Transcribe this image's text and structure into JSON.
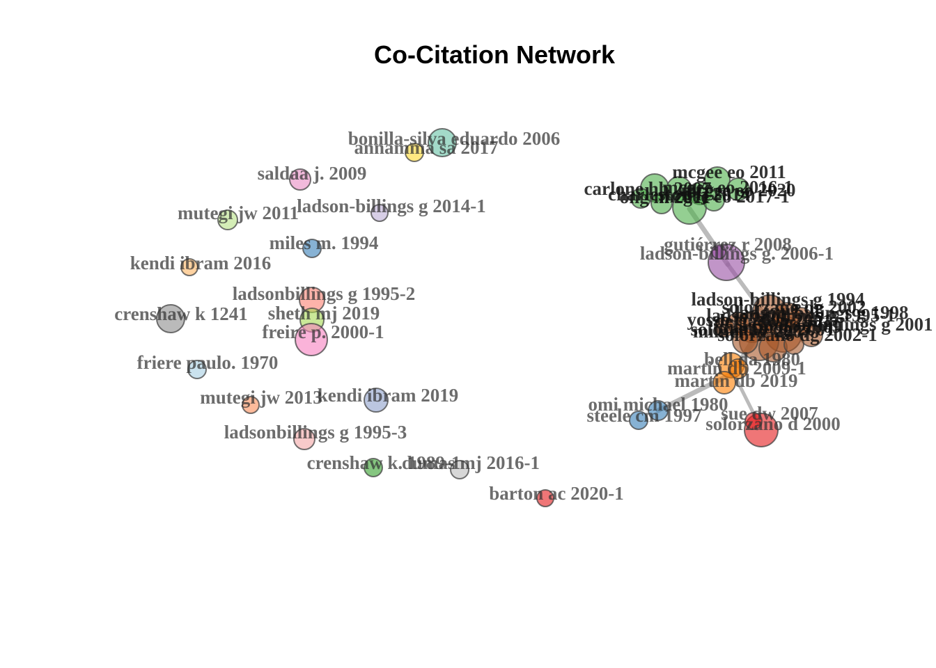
{
  "title": "Co-Citation Network",
  "isolated_nodes": [
    {
      "label": "bonilla-silva eduardo 2006",
      "color": "#66c2a5"
    },
    {
      "label": "annamma sa 2017",
      "color": "#ffd92f"
    },
    {
      "label": "saldaa j. 2009",
      "color": "#e78ac3"
    },
    {
      "label": "ladson-billings g 2014-1",
      "color": "#bcaed6"
    },
    {
      "label": "mutegi jw 2011",
      "color": "#b8e186"
    },
    {
      "label": "miles m. 1994",
      "color": "#377eb8"
    },
    {
      "label": "kendi ibram 2016",
      "color": "#fdb462"
    },
    {
      "label": "ladsonbillings g 1995-2",
      "color": "#fb8072"
    },
    {
      "label": "crenshaw k 1241",
      "color": "#8c8c8c"
    },
    {
      "label": "sheth mj 2019",
      "color": "#a6d854"
    },
    {
      "label": "freire p. 2000-1",
      "color": "#f781bf"
    },
    {
      "label": "friere paulo. 1970",
      "color": "#a6cee3"
    },
    {
      "label": "mutegi jw 2013",
      "color": "#fc8d59"
    },
    {
      "label": "kendi ibram 2019",
      "color": "#8da0cb"
    },
    {
      "label": "ladsonbillings g 1995-3",
      "color": "#f4a6a6"
    },
    {
      "label": "crenshaw k. 1989-1",
      "color": "#33a02c"
    },
    {
      "label": "dumas mj 2016-1",
      "color": "#bdbdbd"
    },
    {
      "label": "barton ac 2020-1",
      "color": "#e41a1c"
    }
  ],
  "clusters": [
    {
      "color": "#4daf4a",
      "labels": [
        "mcgee eo 2011",
        "carlone hb 2007",
        "mcgee eo 2016-1",
        "ong m 2011",
        "mcgee eo 2020",
        "charleston lj 2014",
        "mcgee eo 2017-1"
      ]
    },
    {
      "color": "#984ea3",
      "labels": [
        "gutiérrez r 2008",
        "ladson-billings g. 2006-1"
      ]
    },
    {
      "color": "#a65628",
      "labels": [
        "ladson-billings g 1994",
        "solorzano dg 2002",
        "ladson-billings g 1998",
        "ladson-billings g 1995-1",
        "delgado r 2001",
        "yosso tj 2005",
        "martin db 2009",
        "ladson-billings g 2001",
        "solorzano dg 2001",
        "milner hr 2007",
        "solorzano dg 2002-1"
      ]
    },
    {
      "color": "#ff7f00",
      "labels": [
        "bell da 1980",
        "martin db 2009-1",
        "martin db 2019"
      ]
    },
    {
      "color": "#377eb8",
      "labels": [
        "omi michael 1980",
        "steele cm 1997"
      ]
    },
    {
      "color": "#e41a1c",
      "labels": [
        "sue dw 2007",
        "solorzano d 2000"
      ]
    }
  ]
}
